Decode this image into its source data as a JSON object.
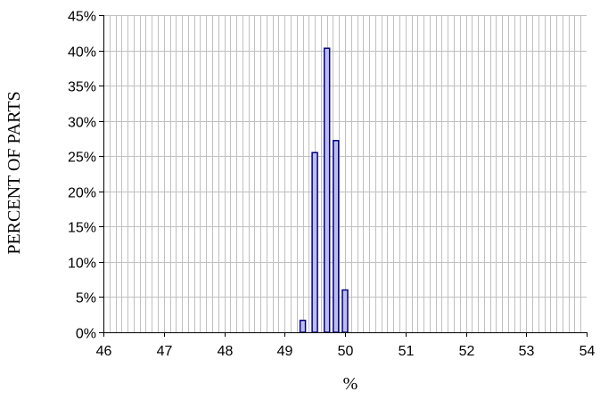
{
  "chart_data": {
    "type": "bar",
    "title": "",
    "xlabel": "%",
    "ylabel": "PERCENT OF PARTS",
    "xlim": [
      46,
      54
    ],
    "ylim": [
      0,
      0.45
    ],
    "x_ticks": [
      46,
      47,
      48,
      49,
      50,
      51,
      52,
      53,
      54
    ],
    "x_tick_labels": [
      "46",
      "47",
      "48",
      "49",
      "50",
      "51",
      "52",
      "53",
      "54"
    ],
    "y_ticks": [
      0,
      0.05,
      0.1,
      0.15,
      0.2,
      0.25,
      0.3,
      0.35,
      0.4,
      0.45
    ],
    "y_tick_labels": [
      "0%",
      "5%",
      "10%",
      "15%",
      "20%",
      "25%",
      "30%",
      "35%",
      "40%",
      "45%"
    ],
    "grid": true,
    "legend": "none",
    "x": [
      49.3,
      49.5,
      49.7,
      49.85,
      50.0
    ],
    "values": [
      0.017,
      0.255,
      0.403,
      0.272,
      0.06
    ],
    "colors": {
      "bar_fill": "#BDBDEC",
      "bar_stroke": "#000080",
      "grid": "#C0C0C0",
      "axis": "#000000"
    }
  }
}
